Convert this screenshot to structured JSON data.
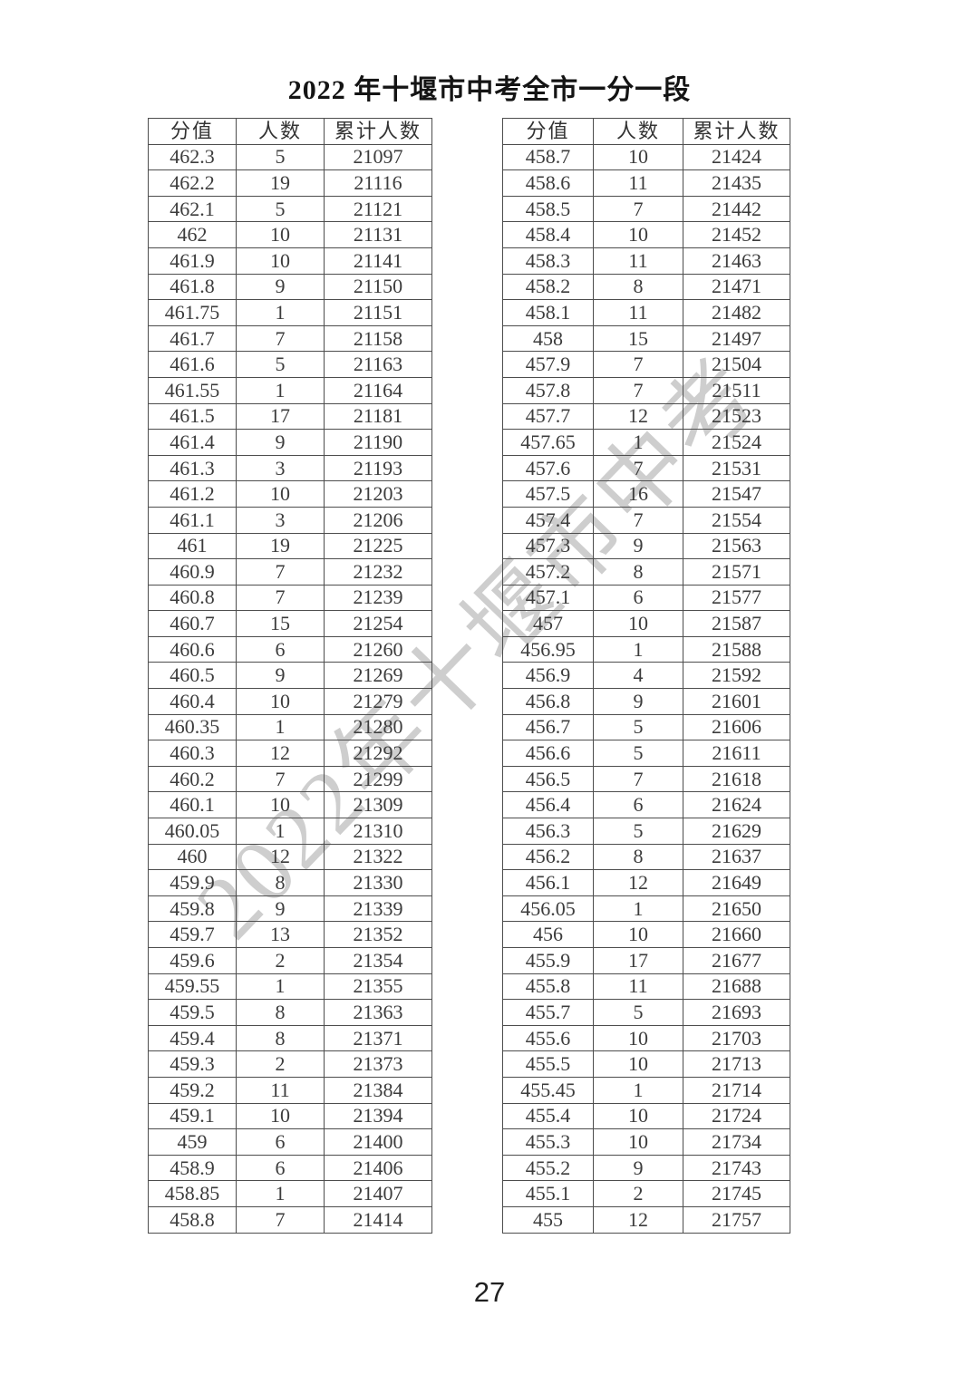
{
  "title": "2022 年十堰市中考全市一分一段",
  "page_number": "27",
  "watermark": {
    "text": "2022年十堰市中考",
    "color": "#c6c6c6"
  },
  "table_headers": {
    "score": "分值",
    "count": "人数",
    "cumulative": "累计人数"
  },
  "tables": {
    "left": {
      "rows": [
        [
          "462.3",
          "5",
          "21097"
        ],
        [
          "462.2",
          "19",
          "21116"
        ],
        [
          "462.1",
          "5",
          "21121"
        ],
        [
          "462",
          "10",
          "21131"
        ],
        [
          "461.9",
          "10",
          "21141"
        ],
        [
          "461.8",
          "9",
          "21150"
        ],
        [
          "461.75",
          "1",
          "21151"
        ],
        [
          "461.7",
          "7",
          "21158"
        ],
        [
          "461.6",
          "5",
          "21163"
        ],
        [
          "461.55",
          "1",
          "21164"
        ],
        [
          "461.5",
          "17",
          "21181"
        ],
        [
          "461.4",
          "9",
          "21190"
        ],
        [
          "461.3",
          "3",
          "21193"
        ],
        [
          "461.2",
          "10",
          "21203"
        ],
        [
          "461.1",
          "3",
          "21206"
        ],
        [
          "461",
          "19",
          "21225"
        ],
        [
          "460.9",
          "7",
          "21232"
        ],
        [
          "460.8",
          "7",
          "21239"
        ],
        [
          "460.7",
          "15",
          "21254"
        ],
        [
          "460.6",
          "6",
          "21260"
        ],
        [
          "460.5",
          "9",
          "21269"
        ],
        [
          "460.4",
          "10",
          "21279"
        ],
        [
          "460.35",
          "1",
          "21280"
        ],
        [
          "460.3",
          "12",
          "21292"
        ],
        [
          "460.2",
          "7",
          "21299"
        ],
        [
          "460.1",
          "10",
          "21309"
        ],
        [
          "460.05",
          "1",
          "21310"
        ],
        [
          "460",
          "12",
          "21322"
        ],
        [
          "459.9",
          "8",
          "21330"
        ],
        [
          "459.8",
          "9",
          "21339"
        ],
        [
          "459.7",
          "13",
          "21352"
        ],
        [
          "459.6",
          "2",
          "21354"
        ],
        [
          "459.55",
          "1",
          "21355"
        ],
        [
          "459.5",
          "8",
          "21363"
        ],
        [
          "459.4",
          "8",
          "21371"
        ],
        [
          "459.3",
          "2",
          "21373"
        ],
        [
          "459.2",
          "11",
          "21384"
        ],
        [
          "459.1",
          "10",
          "21394"
        ],
        [
          "459",
          "6",
          "21400"
        ],
        [
          "458.9",
          "6",
          "21406"
        ],
        [
          "458.85",
          "1",
          "21407"
        ],
        [
          "458.8",
          "7",
          "21414"
        ]
      ]
    },
    "right": {
      "rows": [
        [
          "458.7",
          "10",
          "21424"
        ],
        [
          "458.6",
          "11",
          "21435"
        ],
        [
          "458.5",
          "7",
          "21442"
        ],
        [
          "458.4",
          "10",
          "21452"
        ],
        [
          "458.3",
          "11",
          "21463"
        ],
        [
          "458.2",
          "8",
          "21471"
        ],
        [
          "458.1",
          "11",
          "21482"
        ],
        [
          "458",
          "15",
          "21497"
        ],
        [
          "457.9",
          "7",
          "21504"
        ],
        [
          "457.8",
          "7",
          "21511"
        ],
        [
          "457.7",
          "12",
          "21523"
        ],
        [
          "457.65",
          "1",
          "21524"
        ],
        [
          "457.6",
          "7",
          "21531"
        ],
        [
          "457.5",
          "16",
          "21547"
        ],
        [
          "457.4",
          "7",
          "21554"
        ],
        [
          "457.3",
          "9",
          "21563"
        ],
        [
          "457.2",
          "8",
          "21571"
        ],
        [
          "457.1",
          "6",
          "21577"
        ],
        [
          "457",
          "10",
          "21587"
        ],
        [
          "456.95",
          "1",
          "21588"
        ],
        [
          "456.9",
          "4",
          "21592"
        ],
        [
          "456.8",
          "9",
          "21601"
        ],
        [
          "456.7",
          "5",
          "21606"
        ],
        [
          "456.6",
          "5",
          "21611"
        ],
        [
          "456.5",
          "7",
          "21618"
        ],
        [
          "456.4",
          "6",
          "21624"
        ],
        [
          "456.3",
          "5",
          "21629"
        ],
        [
          "456.2",
          "8",
          "21637"
        ],
        [
          "456.1",
          "12",
          "21649"
        ],
        [
          "456.05",
          "1",
          "21650"
        ],
        [
          "456",
          "10",
          "21660"
        ],
        [
          "455.9",
          "17",
          "21677"
        ],
        [
          "455.8",
          "11",
          "21688"
        ],
        [
          "455.7",
          "5",
          "21693"
        ],
        [
          "455.6",
          "10",
          "21703"
        ],
        [
          "455.5",
          "10",
          "21713"
        ],
        [
          "455.45",
          "1",
          "21714"
        ],
        [
          "455.4",
          "10",
          "21724"
        ],
        [
          "455.3",
          "10",
          "21734"
        ],
        [
          "455.2",
          "9",
          "21743"
        ],
        [
          "455.1",
          "2",
          "21745"
        ],
        [
          "455",
          "12",
          "21757"
        ]
      ]
    }
  }
}
